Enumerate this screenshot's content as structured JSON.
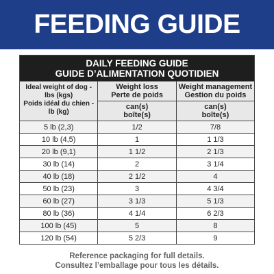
{
  "header": {
    "title": "FEEDING GUIDE"
  },
  "table": {
    "title": [
      "DAILY FEEDING GUIDE",
      "GUIDE D’ALIMENTATION QUOTIDIEN"
    ],
    "columns": [
      {
        "heading": [
          "Ideal weight of dog -",
          "lbs (kgs)",
          "Poids idéal du chien -",
          "lb (kg)"
        ],
        "unit": []
      },
      {
        "heading": [
          "Weight loss",
          "Perte de poids"
        ],
        "unit": [
          "can(s)",
          "boîte(s)"
        ]
      },
      {
        "heading": [
          "Weight management",
          "Gestion du poids"
        ],
        "unit": [
          "can(s)",
          "boîte(s)"
        ]
      }
    ],
    "rows": [
      [
        "5 lb (2,3)",
        "1/2",
        "7/8"
      ],
      [
        "10 lb (4,5)",
        "1",
        "1 1/3"
      ],
      [
        "20 lb (9,1)",
        "1 1/2",
        "2 1/3"
      ],
      [
        "30 lb (14)",
        "2",
        "3 1/4"
      ],
      [
        "40 lb (18)",
        "2 1/2",
        "4"
      ],
      [
        "50 lb (23)",
        "3",
        "4 3/4"
      ],
      [
        "60 lb (27)",
        "3 1/3",
        "5 1/3"
      ],
      [
        "80 lb (36)",
        "4 1/4",
        "6 2/3"
      ],
      [
        "100 lb (45)",
        "5",
        "8"
      ],
      [
        "120 lb (54)",
        "5 2/3",
        "9"
      ]
    ]
  },
  "footer": [
    "Reference packaging for full details.",
    "Consultez l’emballage pour tous les détails."
  ]
}
